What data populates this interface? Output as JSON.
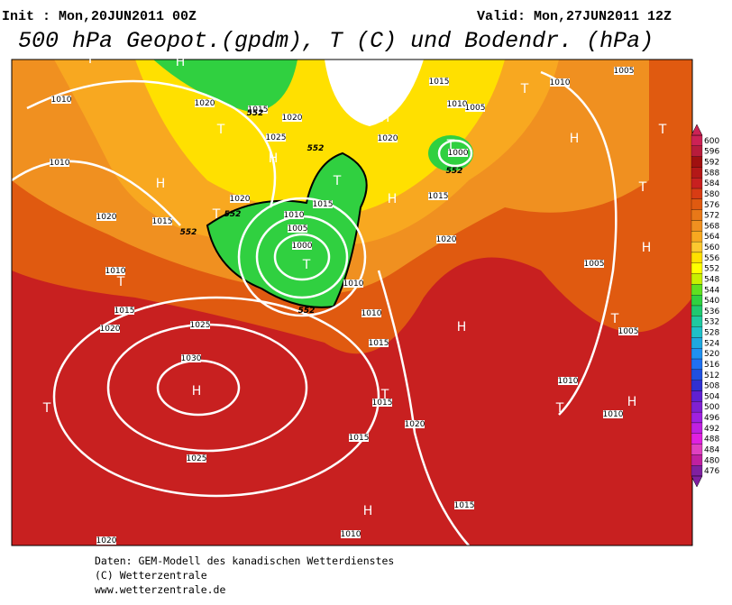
{
  "header": {
    "init": "Init : Mon,20JUN2011 00Z",
    "valid": "Valid: Mon,27JUN2011 12Z",
    "title": "500 hPa Geopot.(gpdm), T (C) und Bodendr. (hPa)"
  },
  "colorbar": {
    "levels": [
      600,
      596,
      592,
      588,
      584,
      580,
      576,
      572,
      568,
      564,
      560,
      556,
      552,
      548,
      544,
      540,
      536,
      532,
      528,
      524,
      520,
      516,
      512,
      508,
      504,
      500,
      496,
      492,
      488,
      484,
      480,
      476
    ],
    "colors": [
      "#cc2255",
      "#b81c3c",
      "#a01010",
      "#b41818",
      "#c82020",
      "#d83c14",
      "#e05a10",
      "#e87818",
      "#f09020",
      "#f8a820",
      "#fcc830",
      "#ffe000",
      "#ffff00",
      "#c8f000",
      "#60e020",
      "#30d040",
      "#20c870",
      "#20c8a0",
      "#20c0c8",
      "#20a8e0",
      "#2090f0",
      "#2070f0",
      "#2050e0",
      "#3030d0",
      "#6020d0",
      "#8020d0",
      "#a020e0",
      "#c020e0",
      "#e020e0",
      "#e040c0",
      "#c020a0",
      "#8020a0"
    ]
  },
  "map": {
    "centers": [
      "H",
      "H",
      "H",
      "H",
      "H",
      "H",
      "H",
      "H",
      "H",
      "H",
      "H",
      "T",
      "T",
      "T",
      "T",
      "T",
      "T",
      "T",
      "T",
      "T",
      "T",
      "T",
      "T",
      "T",
      "T"
    ],
    "isobars": [
      "1010",
      "1010",
      "1020",
      "1015",
      "1010",
      "1015",
      "1020",
      "1025",
      "1030",
      "1025",
      "1020",
      "1025",
      "1020",
      "1015",
      "1010",
      "1005",
      "1000",
      "1010",
      "1010",
      "1015",
      "1015",
      "1020",
      "1015",
      "1010",
      "1015",
      "1010",
      "1010",
      "1005",
      "1005",
      "1020",
      "1015",
      "1020",
      "1015",
      "1010",
      "1005",
      "1000",
      "1005",
      "1010",
      "1020",
      "1015",
      "1020"
    ],
    "heights": [
      "552",
      "552",
      "552",
      "552",
      "552",
      "552"
    ]
  },
  "footer": [
    "Daten: GEM-Modell des kanadischen Wetterdienstes",
    "(C) Wetterzentrale",
    "www.wetterzentrale.de"
  ]
}
